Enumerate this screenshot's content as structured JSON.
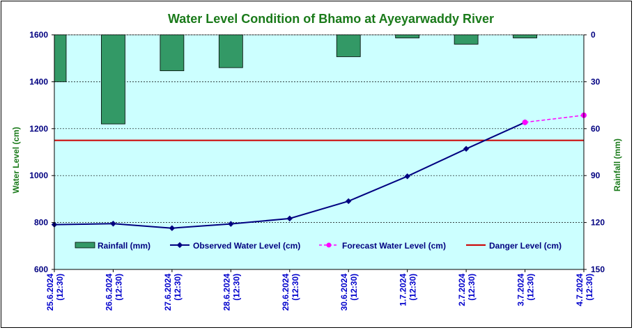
{
  "chart_data": {
    "type": "combo",
    "title": "Water Level Condition of Bhamo at  Ayeyarwaddy River",
    "ylabel_left": "Water Level (cm)",
    "ylabel_right": "Rainfall (mm)",
    "ylim_left": [
      600,
      1600
    ],
    "yticks_left": [
      600,
      800,
      1000,
      1200,
      1400,
      1600
    ],
    "ylim_right": [
      0,
      150
    ],
    "yticks_right": [
      0,
      30,
      60,
      90,
      120,
      150
    ],
    "right_axis_inverted": true,
    "categories": [
      [
        "25.6.2024",
        "(12:30)"
      ],
      [
        "26.6.2024",
        "(12:30)"
      ],
      [
        "27.6.2024",
        "(12:30)"
      ],
      [
        "28.6.2024",
        "(12:30)"
      ],
      [
        "29.6.2024",
        "(12:30)"
      ],
      [
        "30.6.2024",
        "(12:30)"
      ],
      [
        "1.7.2024",
        "(12:30)"
      ],
      [
        "2.7.2024",
        "(12:30)"
      ],
      [
        "3.7.2024",
        "(12:30)"
      ],
      [
        "4.7.2024",
        "(12:30)"
      ]
    ],
    "rainfall": {
      "name": "Rainfall (mm)",
      "color": "#339966",
      "values": [
        30,
        57,
        23,
        21,
        0,
        14,
        2,
        6,
        2,
        null
      ]
    },
    "observed": {
      "name": "Observed Water Level (cm)",
      "color": "#000080",
      "values": [
        791,
        795,
        776,
        794,
        817,
        891,
        997,
        1114,
        1227,
        null
      ]
    },
    "forecast": {
      "name": "Forecast Water Level (cm)",
      "color": "#ff00ff",
      "values": [
        null,
        null,
        null,
        null,
        null,
        null,
        null,
        null,
        1227,
        1257
      ]
    },
    "danger": {
      "name": "Danger Level (cm)",
      "color": "#cc0000",
      "value": 1150
    },
    "plot_background": "#ccffff",
    "grid": true,
    "legend_position": "bottom-inside"
  }
}
